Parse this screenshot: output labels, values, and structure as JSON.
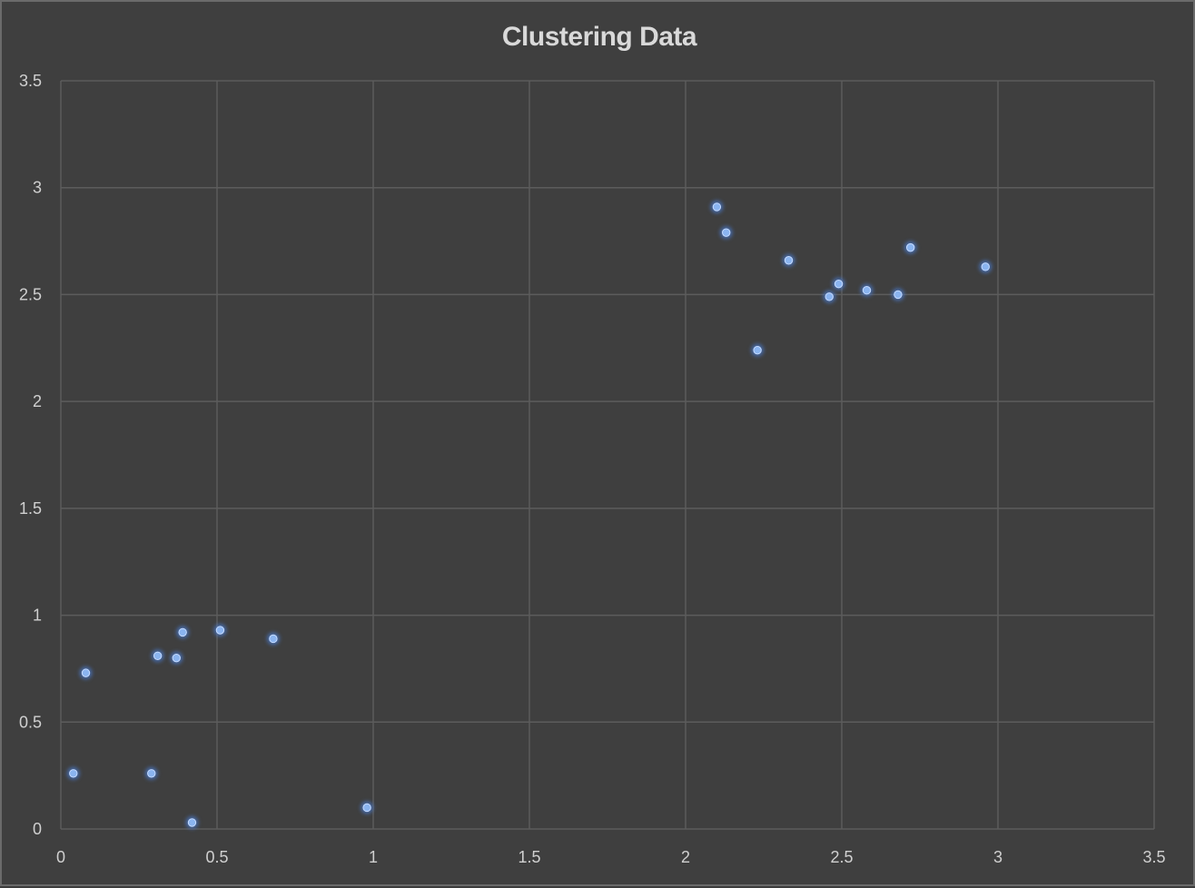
{
  "chart_data": {
    "type": "scatter",
    "title": "Clustering Data",
    "xlabel": "",
    "ylabel": "",
    "xlim": [
      0,
      3.5
    ],
    "ylim": [
      0,
      3.5
    ],
    "xticks": [
      "0",
      "0.5",
      "1",
      "1.5",
      "2",
      "2.5",
      "3",
      "3.5"
    ],
    "yticks": [
      "0",
      "0.5",
      "1",
      "1.5",
      "2",
      "2.5",
      "3",
      "3.5"
    ],
    "grid": true,
    "legend": "none",
    "colors": {
      "background": "#3f3f3f",
      "grid": "#5c5c5c",
      "marker": "#8ab4f0",
      "marker_glow": "#4a78c8",
      "text": "#d0d0d0"
    },
    "series": [
      {
        "points": [
          {
            "x": 0.04,
            "y": 0.26
          },
          {
            "x": 0.08,
            "y": 0.73
          },
          {
            "x": 0.29,
            "y": 0.26
          },
          {
            "x": 0.31,
            "y": 0.81
          },
          {
            "x": 0.37,
            "y": 0.8
          },
          {
            "x": 0.39,
            "y": 0.92
          },
          {
            "x": 0.42,
            "y": 0.03
          },
          {
            "x": 0.51,
            "y": 0.93
          },
          {
            "x": 0.68,
            "y": 0.89
          },
          {
            "x": 0.98,
            "y": 0.1
          },
          {
            "x": 2.1,
            "y": 2.91
          },
          {
            "x": 2.13,
            "y": 2.79
          },
          {
            "x": 2.23,
            "y": 2.24
          },
          {
            "x": 2.33,
            "y": 2.66
          },
          {
            "x": 2.46,
            "y": 2.49
          },
          {
            "x": 2.49,
            "y": 2.55
          },
          {
            "x": 2.58,
            "y": 2.52
          },
          {
            "x": 2.68,
            "y": 2.5
          },
          {
            "x": 2.72,
            "y": 2.72
          },
          {
            "x": 2.96,
            "y": 2.63
          }
        ]
      }
    ]
  }
}
